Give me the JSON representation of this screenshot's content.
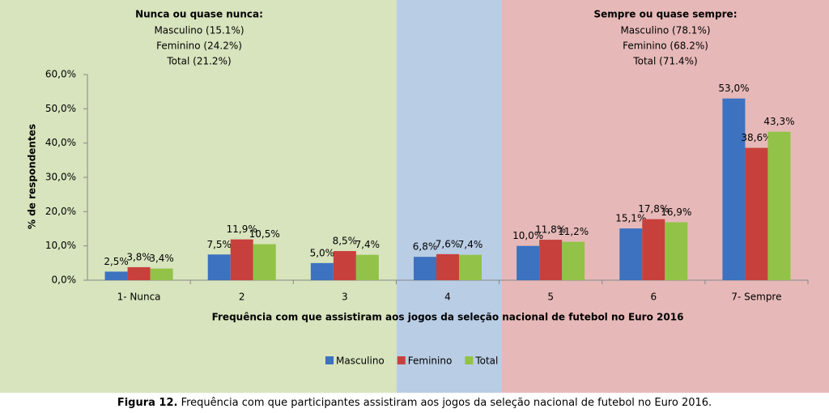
{
  "chart_data": {
    "type": "bar",
    "annotations": [
      {
        "title": "Nunca ou quase nunca:",
        "lines": [
          "Masculino (15.1%)",
          "Feminino (24.2%)",
          "Total (21.2%)"
        ]
      },
      {
        "title": "Sempre ou quase sempre:",
        "lines": [
          "Masculino (78.1%)",
          "Feminino (68.2%)",
          "Total (71.4%)"
        ]
      }
    ],
    "y_label": "% de respondentes",
    "x_label": "Frequência com que assistiram aos jogos da seleção nacional de futebol no Euro 2016",
    "categories": [
      "1- Nunca",
      "2",
      "3",
      "4",
      "5",
      "6",
      "7- Sempre"
    ],
    "series": [
      {
        "name": "Masculino",
        "color": "#3c72bf",
        "values": [
          2.5,
          7.5,
          5.0,
          6.8,
          10.0,
          15.1,
          53.0
        ],
        "value_labels": [
          "2,5%",
          "7,5%",
          "5,0%",
          "6,8%",
          "10,0%",
          "15,1%",
          "53,0%"
        ]
      },
      {
        "name": "Feminino",
        "color": "#c8403c",
        "values": [
          3.8,
          11.9,
          8.5,
          7.6,
          11.8,
          17.8,
          38.6
        ],
        "value_labels": [
          "3,8%",
          "11,9%",
          "8,5%",
          "7,6%",
          "11,8%",
          "17,8%",
          "38,6%"
        ]
      },
      {
        "name": "Total",
        "color": "#92c247",
        "values": [
          3.4,
          10.5,
          7.4,
          7.4,
          11.2,
          16.9,
          43.3
        ],
        "value_labels": [
          "3,4%",
          "10,5%",
          "7,4%",
          "7,4%",
          "11,2%",
          "16,9%",
          "43,3%"
        ]
      }
    ],
    "ylim": [
      0,
      60
    ],
    "yticks": [
      {
        "value": 0,
        "label": "0,0%"
      },
      {
        "value": 10,
        "label": "10,0%"
      },
      {
        "value": 20,
        "label": "20,0%"
      },
      {
        "value": 30,
        "label": "30,0%"
      },
      {
        "value": 40,
        "label": "40,0%"
      },
      {
        "value": 50,
        "label": "50,0%"
      },
      {
        "value": 60,
        "label": "60,0%"
      }
    ],
    "grid": false,
    "legend": "bottom"
  },
  "caption": {
    "label": "Figura 12.",
    "text": "Frequência com que participantes assistiram aos jogos da seleção nacional de futebol no Euro 2016."
  }
}
